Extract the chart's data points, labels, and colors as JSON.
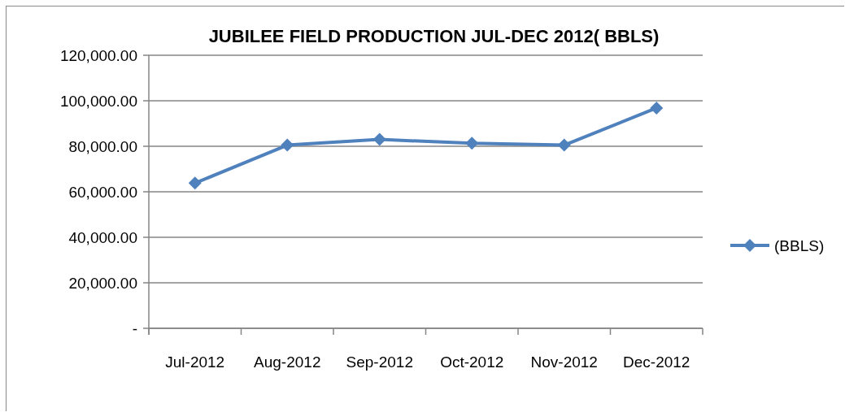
{
  "chart_data": {
    "type": "line",
    "title": "JUBILEE FIELD PRODUCTION JUL-DEC 2012( BBLS)",
    "categories": [
      "Jul-2012",
      "Aug-2012",
      "Sep-2012",
      "Oct-2012",
      "Nov-2012",
      "Dec-2012"
    ],
    "series": [
      {
        "name": "(BBLS)",
        "color": "#4f81bd",
        "values": [
          63800,
          80500,
          83000,
          81300,
          80500,
          96800
        ]
      }
    ],
    "ylim": [
      0,
      120000
    ],
    "yticks": [
      {
        "value": 0,
        "label": "-"
      },
      {
        "value": 20000,
        "label": "20,000.00"
      },
      {
        "value": 40000,
        "label": "40,000.00"
      },
      {
        "value": 60000,
        "label": "60,000.00"
      },
      {
        "value": 80000,
        "label": "80,000.00"
      },
      {
        "value": 100000,
        "label": "100,000.00"
      },
      {
        "value": 120000,
        "label": "120,000.00"
      }
    ],
    "grid": "y",
    "legend": "right",
    "marker": "diamond",
    "line_style": "solid"
  }
}
